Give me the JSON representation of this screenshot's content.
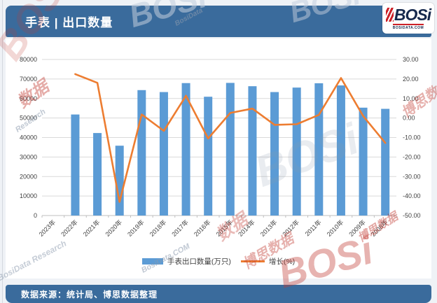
{
  "header": {
    "title": "手表 | 出口数量"
  },
  "logo": {
    "brand": "BOSi",
    "domain": "BOSIDATA.COM"
  },
  "footer": {
    "source_text": "数据来源：统计局、博思数据整理"
  },
  "colors": {
    "header_bg": "#3A6B9C",
    "bar": "#5B9BD5",
    "line": "#ED7D31",
    "grid": "#D9D9D9",
    "axis_text": "#3F3F3F",
    "logo_navy": "#16294D",
    "logo_red": "#CC2128",
    "page_bg": "#EFF2F6"
  },
  "watermarks": [
    "BOSi",
    "数据",
    "Research",
    "BOSi",
    "BOSi",
    "BosiData",
    "数据",
    "博思数据",
    "BOSi",
    "BOSi",
    "博思数据",
    "BosiData Research",
    "BosiData.COM",
    "博思数据"
  ],
  "chart_data": {
    "type": "combo-bar-line",
    "title": "手表 | 出口数量",
    "categories": [
      "2023年",
      "2022年",
      "2021年",
      "2020年",
      "2019年",
      "2018年",
      "2017年",
      "2016年",
      "2015年",
      "2014年",
      "2013年",
      "2012年",
      "2011年",
      "2010年",
      "2009年",
      "2008年"
    ],
    "series": [
      {
        "name": "手表出口数量(万只)",
        "type": "bar",
        "axis": "left",
        "color": "#5B9BD5",
        "values": [
          null,
          51800,
          42300,
          35800,
          64300,
          63300,
          67900,
          60900,
          68000,
          66300,
          63300,
          65600,
          67800,
          66700,
          55300,
          54700
        ]
      },
      {
        "name": "增长(%)",
        "type": "line",
        "axis": "right",
        "color": "#ED7D31",
        "values": [
          null,
          22.5,
          18.0,
          -43.0,
          1.8,
          -6.6,
          11.4,
          -10.5,
          2.6,
          4.8,
          -3.5,
          -3.2,
          1.6,
          20.5,
          1.0,
          -12.8
        ]
      }
    ],
    "left_axis": {
      "min": 0,
      "max": 80000,
      "ticks": [
        "80000",
        "70000",
        "60000",
        "50000",
        "40000",
        "30000",
        "20000",
        "10000",
        "0"
      ]
    },
    "right_axis": {
      "min": -50,
      "max": 30,
      "ticks": [
        "30.00",
        "20.00",
        "10.00",
        "0.00",
        "-10.00",
        "-20.00",
        "-30.00",
        "-40.00",
        "-50.00"
      ]
    },
    "grid": true,
    "legend_position": "bottom"
  }
}
